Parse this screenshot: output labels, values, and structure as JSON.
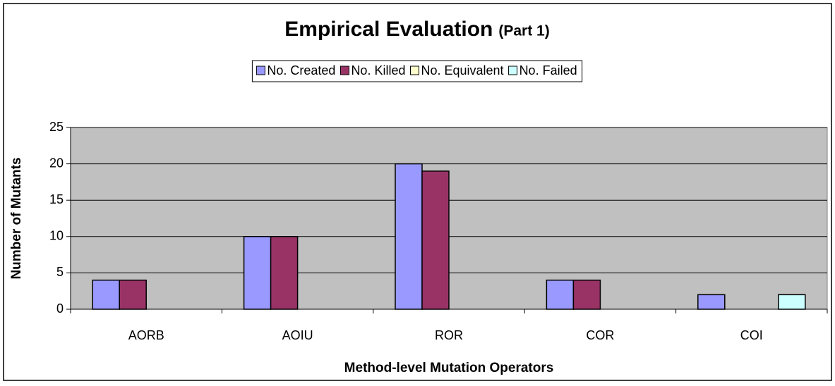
{
  "chart_data": {
    "type": "bar",
    "title": "Empirical Evaluation",
    "subtitle": "(Part 1)",
    "x_label": "Method-level Mutation Operators",
    "y_label": "Number of Mutants",
    "categories": [
      "AORB",
      "AOIU",
      "ROR",
      "COR",
      "COI"
    ],
    "series": [
      {
        "name": "No. Created",
        "color": "#9999ff",
        "values": [
          4,
          10,
          20,
          4,
          2
        ]
      },
      {
        "name": "No. Killed",
        "color": "#993366",
        "values": [
          4,
          10,
          19,
          4,
          0
        ]
      },
      {
        "name": "No. Equivalent",
        "color": "#ffffcc",
        "values": [
          0,
          0,
          0,
          0,
          0
        ]
      },
      {
        "name": "No. Failed",
        "color": "#ccffff",
        "values": [
          0,
          0,
          0,
          0,
          2
        ]
      }
    ],
    "ylim": [
      0,
      25
    ],
    "yticks": [
      0,
      5,
      10,
      15,
      20,
      25
    ],
    "grid": true,
    "legend": "top"
  }
}
